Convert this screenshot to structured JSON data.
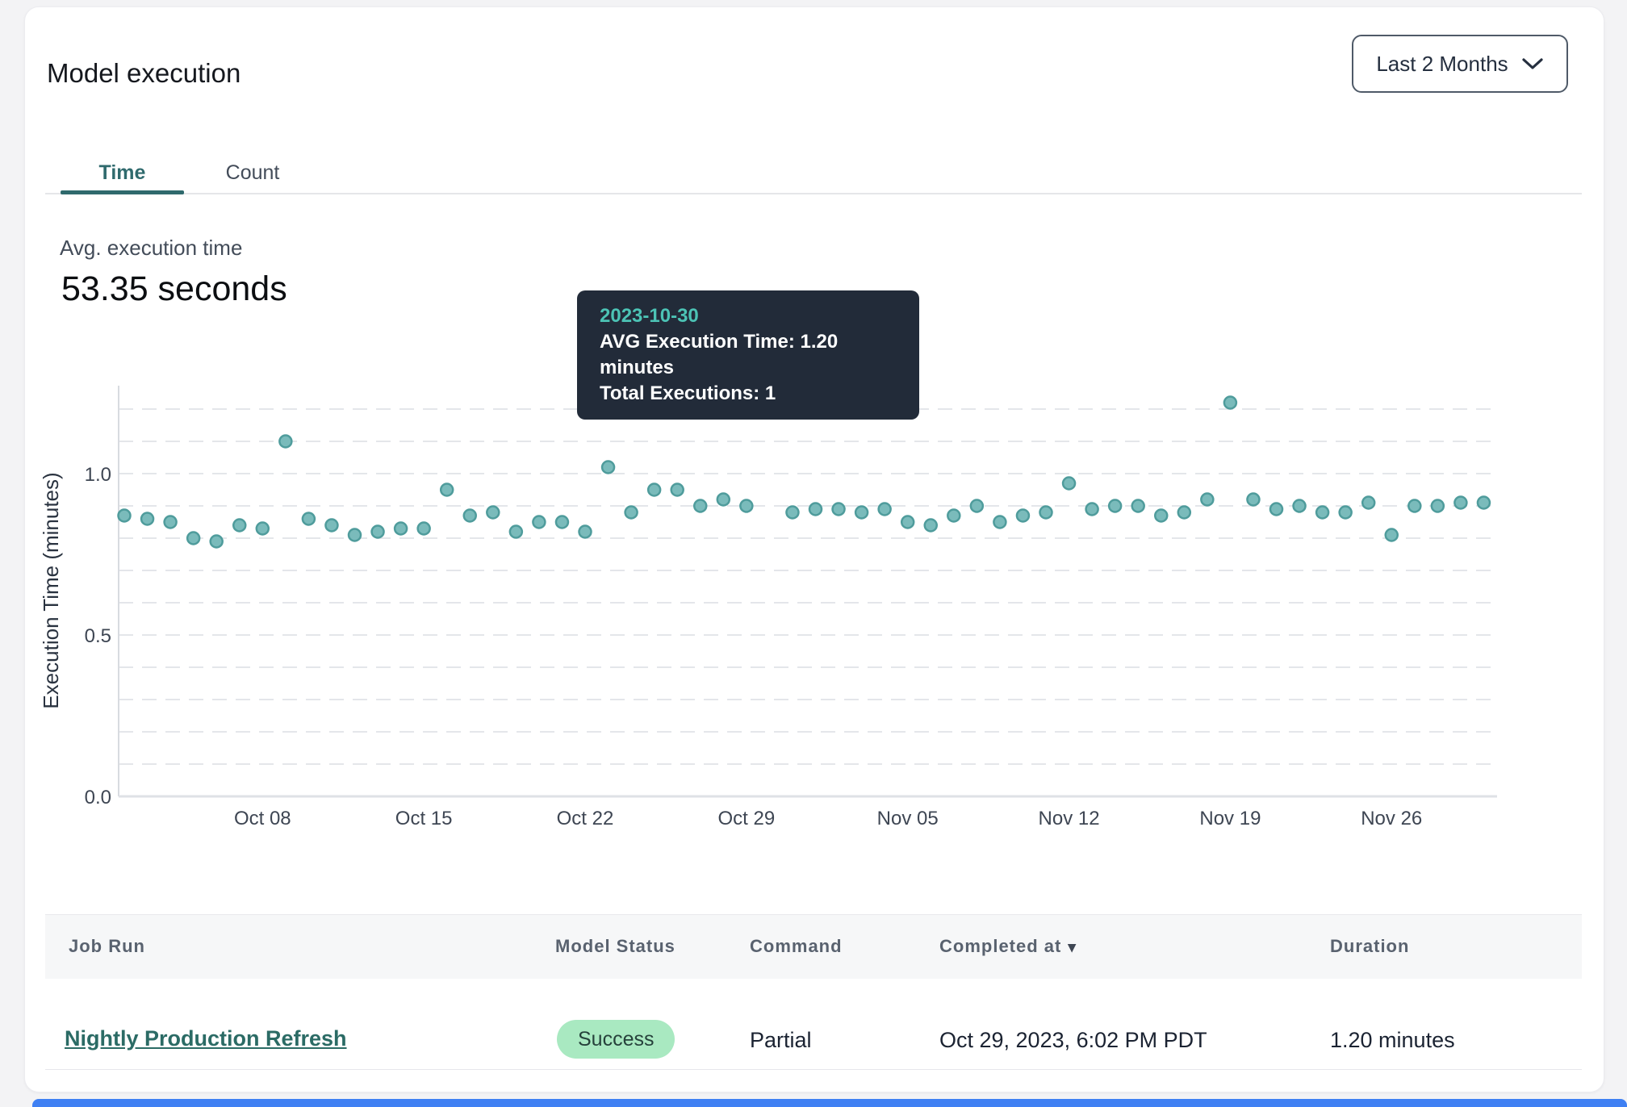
{
  "header": {
    "title": "Model execution",
    "range_selector": {
      "label": "Last 2 Months"
    }
  },
  "tabs": [
    {
      "label": "Time",
      "active": true
    },
    {
      "label": "Count",
      "active": false
    }
  ],
  "summary": {
    "label": "Avg. execution time",
    "value": "53.35 seconds"
  },
  "tooltip": {
    "date": "2023-10-30",
    "avg_line": "AVG Execution Time: 1.20 minutes",
    "total_line": "Total Executions: 1"
  },
  "chart_data": {
    "type": "scatter",
    "title": "",
    "xlabel": "",
    "ylabel": "Execution Time (minutes)",
    "ylim": [
      0,
      1.275
    ],
    "grid": "horizontal dashed every 0.1 up to 1.2",
    "grid_values": [
      0.1,
      0.2,
      0.3,
      0.4,
      0.5,
      0.6,
      0.7,
      0.8,
      0.9,
      1.0,
      1.1,
      1.2
    ],
    "ytick_values": [
      0.0,
      0.5,
      1.0
    ],
    "ytick_labels": [
      "0.0",
      "0.5",
      "1.0"
    ],
    "xticks": [
      {
        "label": "Oct 08",
        "index": 6
      },
      {
        "label": "Oct 15",
        "index": 13
      },
      {
        "label": "Oct 22",
        "index": 20
      },
      {
        "label": "Oct 29",
        "index": 27
      },
      {
        "label": "Nov 05",
        "index": 34
      },
      {
        "label": "Nov 12",
        "index": 41
      },
      {
        "label": "Nov 19",
        "index": 48
      },
      {
        "label": "Nov 26",
        "index": 55
      }
    ],
    "dates": [
      "2023-10-02",
      "2023-10-03",
      "2023-10-04",
      "2023-10-05",
      "2023-10-06",
      "2023-10-07",
      "2023-10-08",
      "2023-10-09",
      "2023-10-10",
      "2023-10-11",
      "2023-10-12",
      "2023-10-13",
      "2023-10-14",
      "2023-10-15",
      "2023-10-16",
      "2023-10-17",
      "2023-10-18",
      "2023-10-19",
      "2023-10-20",
      "2023-10-21",
      "2023-10-22",
      "2023-10-23",
      "2023-10-24",
      "2023-10-25",
      "2023-10-26",
      "2023-10-27",
      "2023-10-28",
      "2023-10-29",
      "2023-10-30",
      "2023-10-31",
      "2023-11-01",
      "2023-11-02",
      "2023-11-03",
      "2023-11-04",
      "2023-11-05",
      "2023-11-06",
      "2023-11-07",
      "2023-11-08",
      "2023-11-09",
      "2023-11-10",
      "2023-11-11",
      "2023-11-12",
      "2023-11-13",
      "2023-11-14",
      "2023-11-15",
      "2023-11-16",
      "2023-11-17",
      "2023-11-18",
      "2023-11-19",
      "2023-11-20",
      "2023-11-21",
      "2023-11-22",
      "2023-11-23",
      "2023-11-24",
      "2023-11-25",
      "2023-11-26",
      "2023-11-27",
      "2023-11-28",
      "2023-11-29",
      "2023-11-30"
    ],
    "values": [
      0.87,
      0.86,
      0.85,
      0.8,
      0.79,
      0.84,
      0.83,
      1.1,
      0.86,
      0.84,
      0.81,
      0.82,
      0.83,
      0.83,
      0.95,
      0.87,
      0.88,
      0.82,
      0.85,
      0.85,
      0.82,
      1.02,
      0.88,
      0.95,
      0.95,
      0.9,
      0.92,
      0.9,
      1.2,
      0.88,
      0.89,
      0.89,
      0.88,
      0.89,
      0.85,
      0.84,
      0.87,
      0.9,
      0.85,
      0.87,
      0.88,
      0.97,
      0.89,
      0.9,
      0.9,
      0.87,
      0.88,
      0.92,
      1.22,
      0.92,
      0.89,
      0.9,
      0.88,
      0.88,
      0.91,
      0.81,
      0.9,
      0.9,
      0.91,
      0.91
    ],
    "highlighted_index": 28,
    "highlighted_date": "2023-10-30",
    "highlighted_value": 1.2,
    "colors": {
      "point_fill": "#7abbbb",
      "point_stroke": "#4f9c9c",
      "highlight_fill": "#4b8c93",
      "highlight_stroke": "#41818a",
      "gridline": "#e4e6ea",
      "axis_line": "#d8dbe0",
      "baseline": "#dfe1e6",
      "tick_text": "#3e4653",
      "axis_title_text": "#29323f"
    }
  },
  "table": {
    "columns": [
      "Job Run",
      "Model Status",
      "Command",
      "Completed at",
      "Duration"
    ],
    "sort": {
      "column": "Completed at",
      "direction": "desc",
      "icon": "▾"
    },
    "rows": [
      {
        "job_run": "Nightly Production Refresh",
        "model_status": "Success",
        "command": "Partial",
        "completed_at": "Oct 29, 2023, 6:02 PM PDT",
        "duration": "1.20 minutes"
      }
    ]
  },
  "accent_colors": {
    "tab_active": "#2f6a6d",
    "link": "#2b6b65",
    "badge_bg": "#a9e9c1",
    "tooltip_bg": "#222b39",
    "tooltip_date": "#4cc3b5",
    "bottom_bar": "#3f80f3"
  }
}
